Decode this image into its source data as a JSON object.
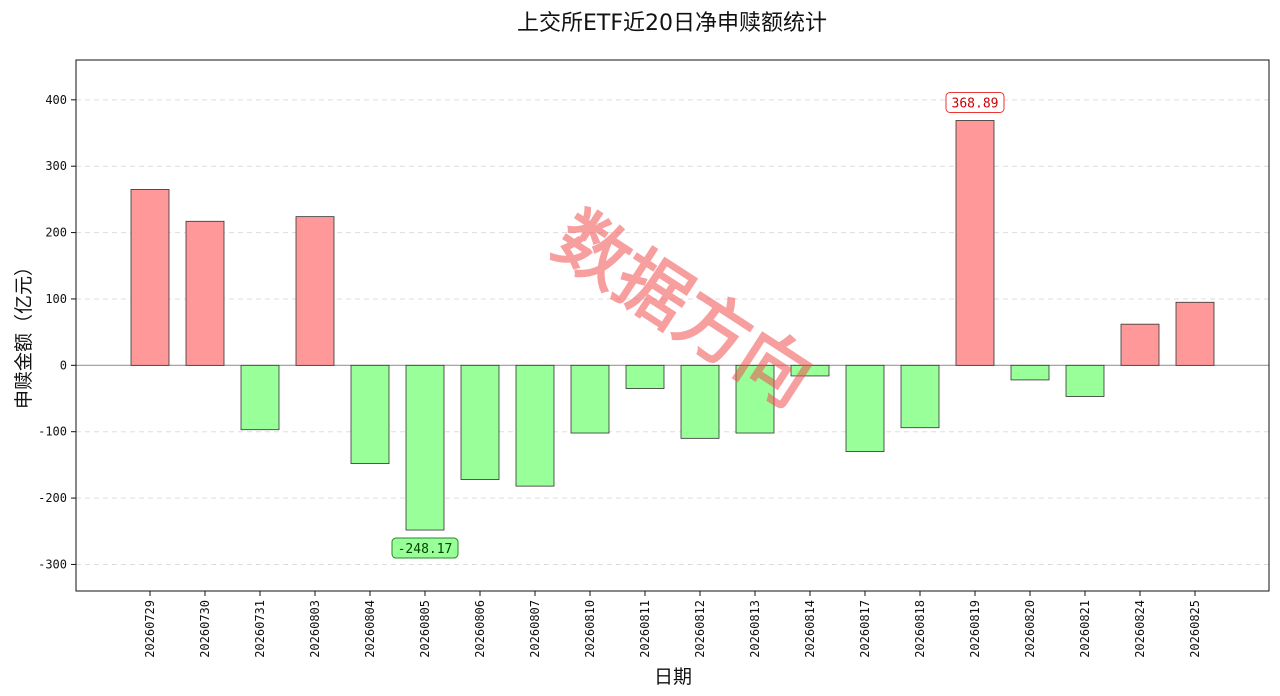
{
  "chart_data": {
    "type": "bar",
    "title": "上交所ETF近20日净申赎额统计",
    "xlabel": "日期",
    "ylabel": "申赎金额（亿元）",
    "ylim": [
      -340,
      460
    ],
    "yticks": [
      -300,
      -200,
      -100,
      0,
      100,
      200,
      300,
      400
    ],
    "grid": true,
    "categories": [
      "20260729",
      "20260730",
      "20260731",
      "20260803",
      "20260804",
      "20260805",
      "20260806",
      "20260807",
      "20260810",
      "20260811",
      "20260812",
      "20260813",
      "20260814",
      "20260817",
      "20260818",
      "20260819",
      "20260820",
      "20260821",
      "20260824",
      "20260825"
    ],
    "values": [
      265,
      217,
      -97,
      224,
      -148,
      -248.17,
      -172,
      -182,
      -102,
      -35,
      -110,
      -102,
      -16,
      -130,
      -94,
      368.89,
      -22,
      -47,
      62,
      95
    ],
    "positive_color": "#ff9999",
    "negative_color": "#99ff99",
    "annotations": [
      {
        "label": "368.89",
        "category": "20260819",
        "value": 368.89,
        "kind": "max",
        "text_color": "#cc0000",
        "border_color": "#ee3333",
        "fill": "#ffffff"
      },
      {
        "label": "-248.17",
        "category": "20260805",
        "value": -248.17,
        "kind": "min",
        "text_color": "#004400",
        "border_color": "#228822",
        "fill": "#99ff99"
      }
    ]
  },
  "watermark": "数据方向"
}
